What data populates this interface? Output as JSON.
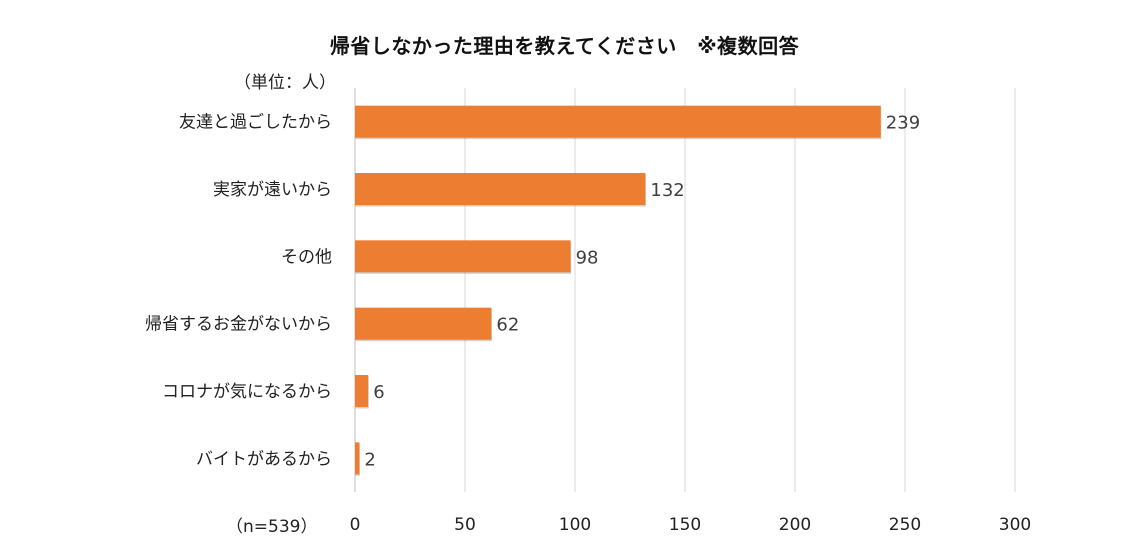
{
  "chart_data": {
    "type": "bar",
    "orientation": "horizontal",
    "title": "帰省しなかった理由を教えてください　※複数回答",
    "unit_label": "（単位：人）",
    "sample_note": "（n=539）",
    "categories": [
      "友達と過ごしたから",
      "実家が遠いから",
      "その他",
      "帰省するお金がないから",
      "コロナが気になるから",
      "バイトがあるから"
    ],
    "values": [
      239,
      132,
      98,
      62,
      6,
      2
    ],
    "xlim": [
      0,
      300
    ],
    "xticks": [
      0,
      50,
      100,
      150,
      200,
      250,
      300
    ],
    "grid": true,
    "bar_color": "#ED7D31",
    "grid_color": "#D9D9D9"
  }
}
